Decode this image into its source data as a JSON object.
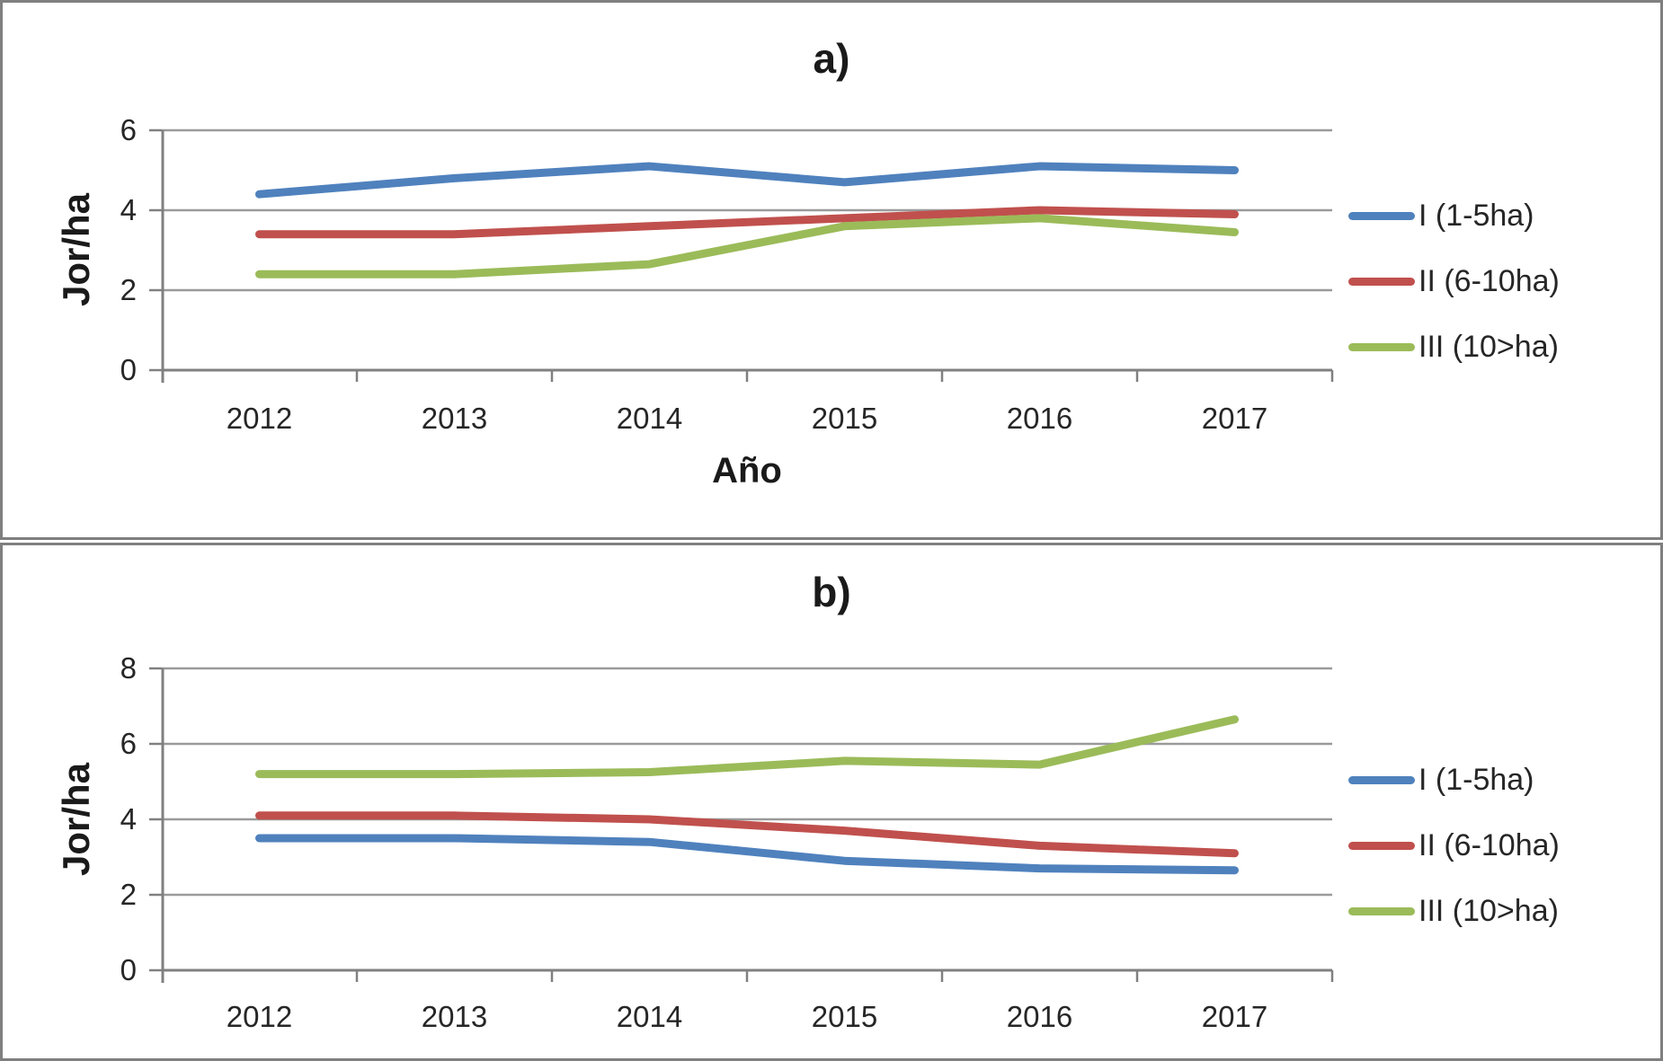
{
  "figure_labels": {
    "panel_a_title": "a)",
    "panel_b_title": "b)",
    "y_axis_title": "Jor/ha",
    "x_axis_title": "Año"
  },
  "colors": {
    "series_blue": "#4F81BD",
    "series_red": "#C0504D",
    "series_green": "#9BBB59",
    "gridline": "#9a9a9a",
    "axis": "#808080",
    "text": "#262626",
    "panel_border": "#7f7f7f"
  },
  "chart_data": [
    {
      "type": "line",
      "title": "a)",
      "xlabel": "Año",
      "ylabel": "Jor/ha",
      "categories": [
        "2012",
        "2013",
        "2014",
        "2015",
        "2016",
        "2017"
      ],
      "ylim": [
        0,
        6
      ],
      "yticks": [
        0,
        2,
        4,
        6
      ],
      "grid": true,
      "legend_position": "right",
      "series": [
        {
          "name": "I (1-5ha)",
          "color": "#4F81BD",
          "values": [
            4.4,
            4.8,
            5.1,
            4.7,
            5.1,
            5.0
          ]
        },
        {
          "name": "II (6-10ha)",
          "color": "#C0504D",
          "values": [
            3.4,
            3.4,
            3.6,
            3.8,
            4.0,
            3.9
          ]
        },
        {
          "name": "III (10>ha)",
          "color": "#9BBB59",
          "values": [
            2.4,
            2.4,
            2.65,
            3.6,
            3.8,
            3.45
          ]
        }
      ]
    },
    {
      "type": "line",
      "title": "b)",
      "xlabel": "",
      "ylabel": "Jor/ha",
      "categories": [
        "2012",
        "2013",
        "2014",
        "2015",
        "2016",
        "2017"
      ],
      "ylim": [
        0,
        8
      ],
      "yticks": [
        0,
        2,
        4,
        6,
        8
      ],
      "grid": true,
      "legend_position": "right",
      "series": [
        {
          "name": "I (1-5ha)",
          "color": "#4F81BD",
          "values": [
            3.5,
            3.5,
            3.4,
            2.9,
            2.7,
            2.65
          ]
        },
        {
          "name": "II (6-10ha)",
          "color": "#C0504D",
          "values": [
            4.1,
            4.1,
            4.0,
            3.7,
            3.3,
            3.1
          ]
        },
        {
          "name": "III (10>ha)",
          "color": "#9BBB59",
          "values": [
            5.2,
            5.2,
            5.25,
            5.55,
            5.45,
            6.65
          ]
        }
      ]
    }
  ]
}
